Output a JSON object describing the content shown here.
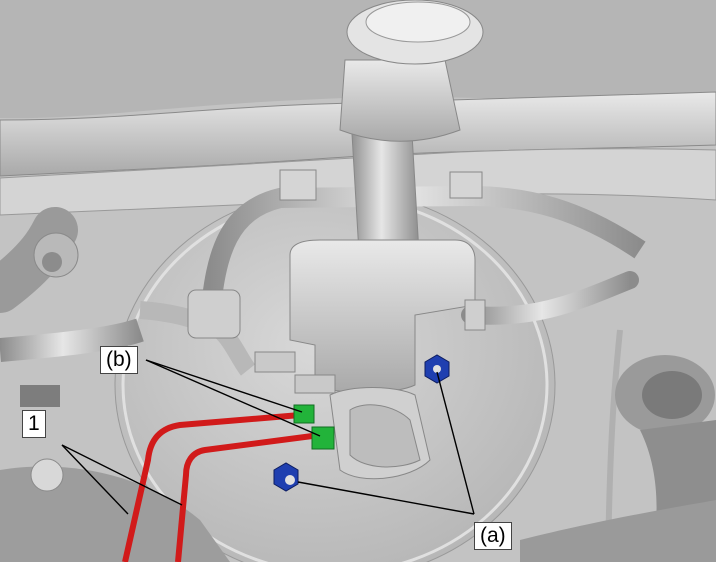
{
  "callouts": {
    "one": "1",
    "b": "(b)",
    "a": "(a)"
  },
  "colors": {
    "brake_pipe": "#d11a1a",
    "hose_clip": "#22b33a",
    "flange_nut": "#1f3fb0",
    "leader_line": "#000000",
    "component": "#cfcfcf"
  }
}
